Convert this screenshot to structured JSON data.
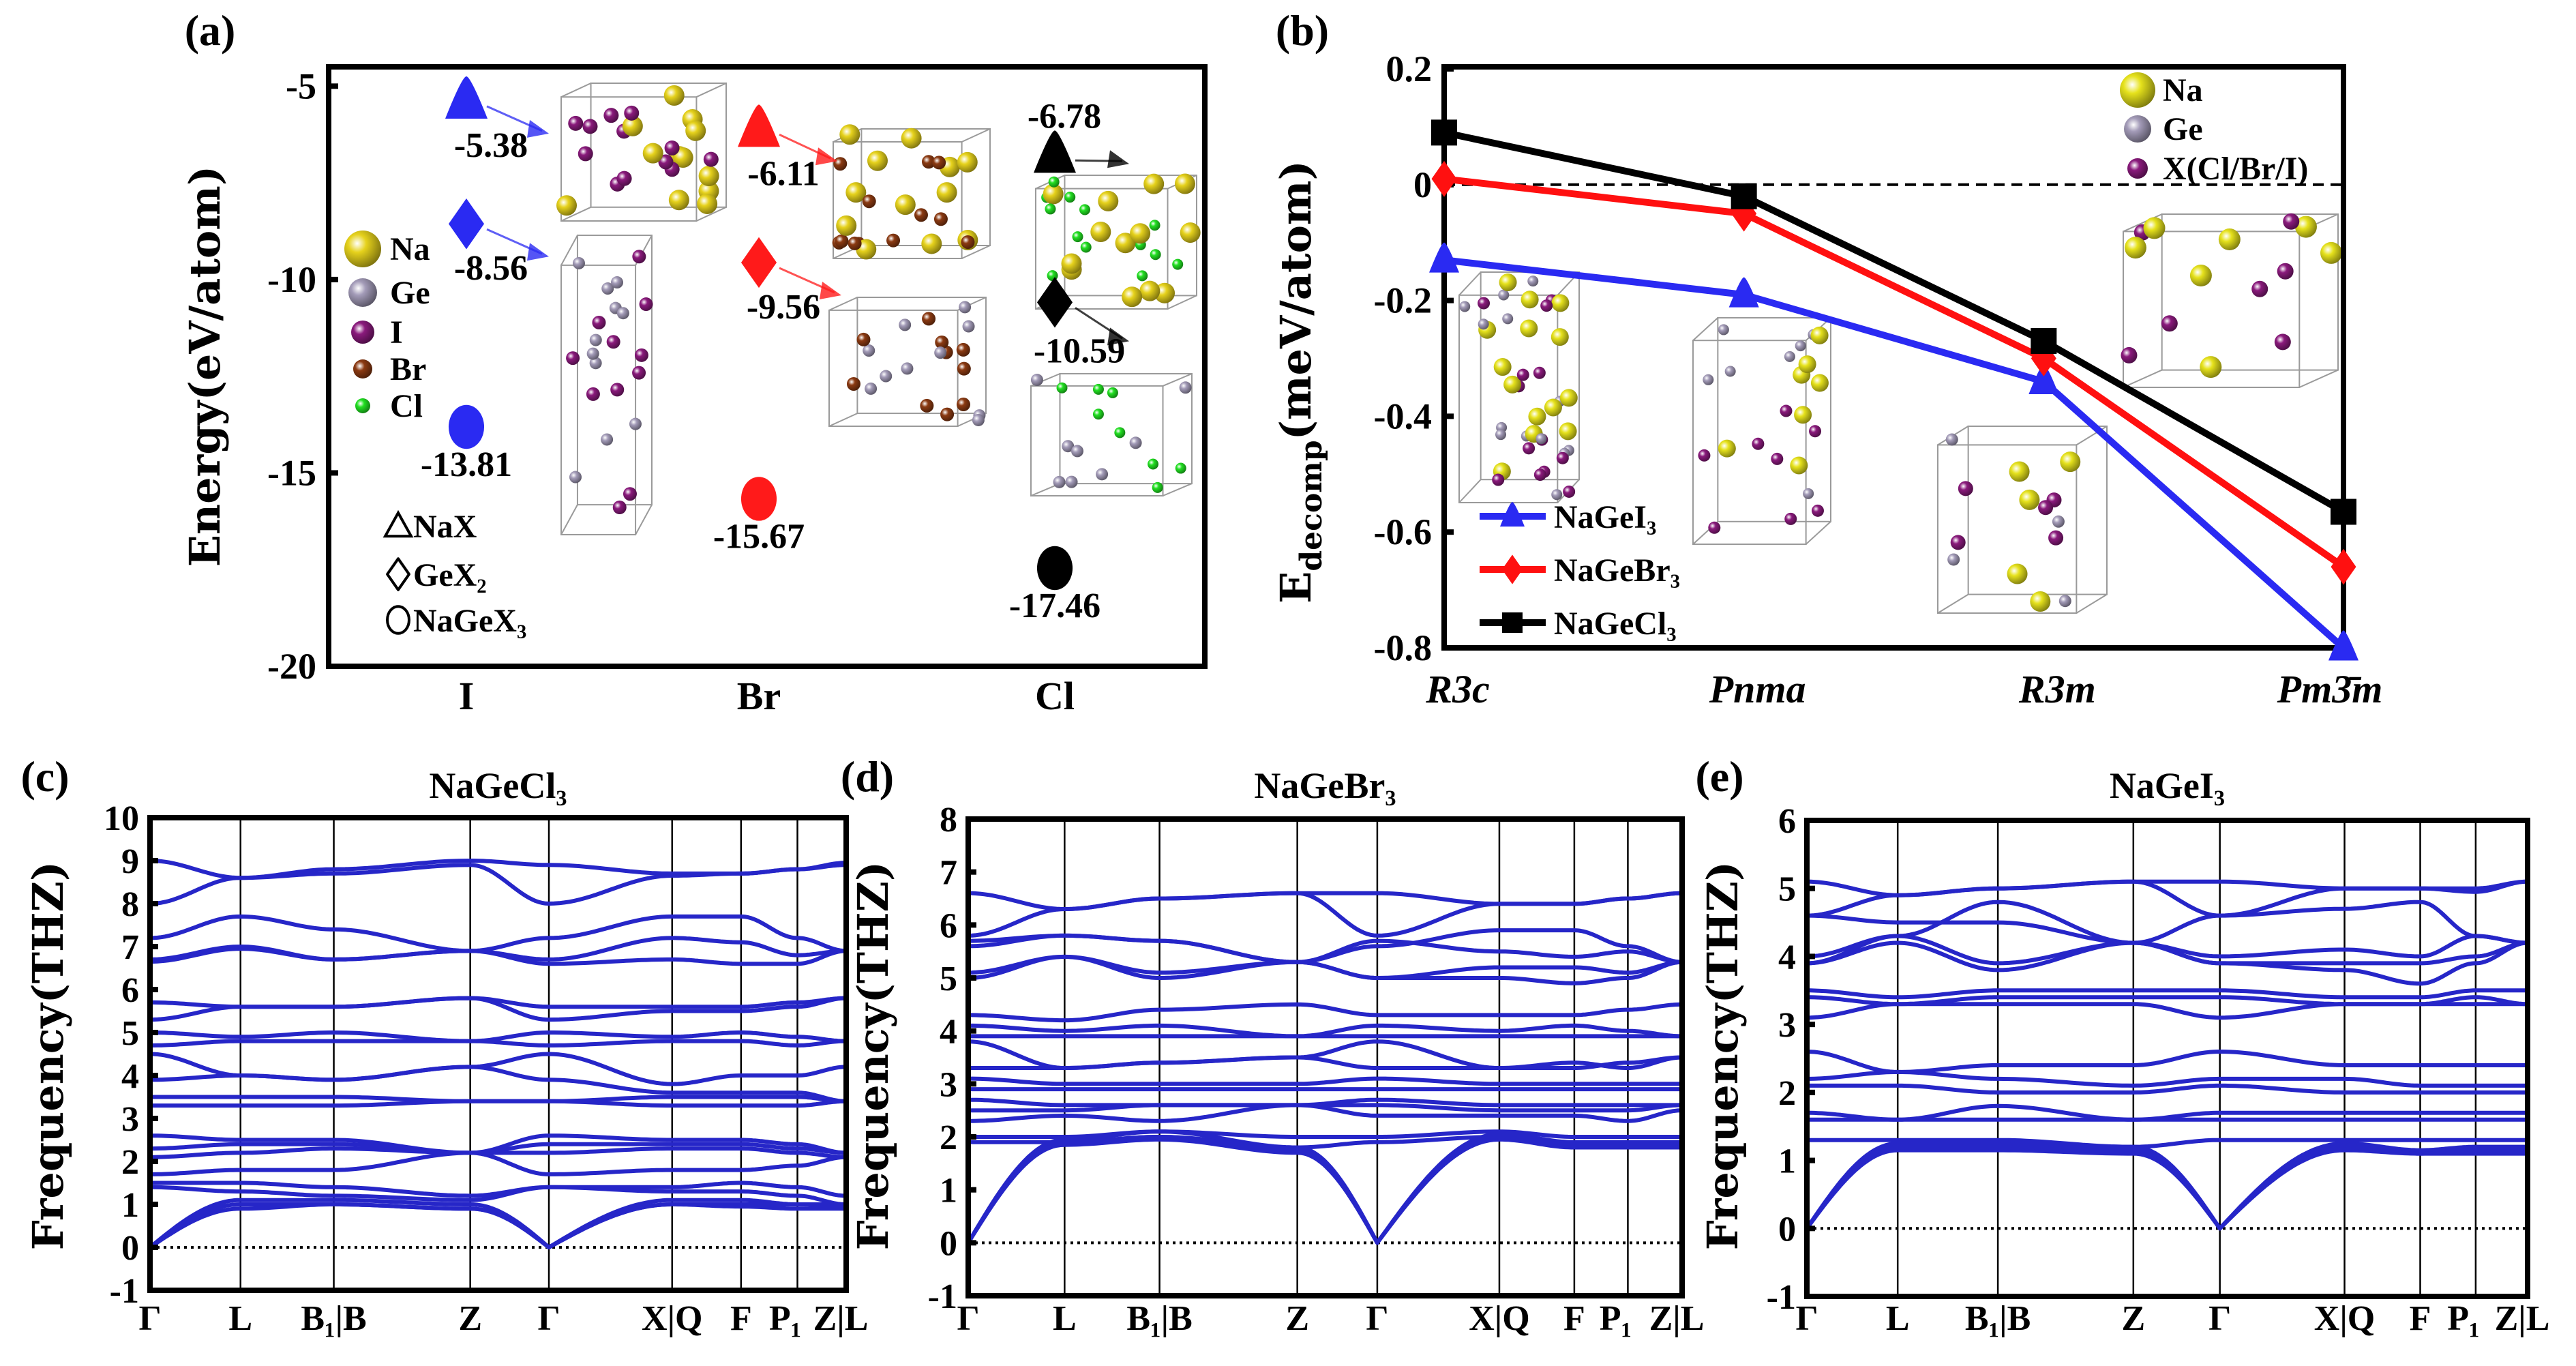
{
  "panel_labels": {
    "a": "(a)",
    "b": "(b)",
    "c": "(c)",
    "d": "(d)",
    "e": "(e)"
  },
  "chart_data": [
    {
      "panel": "(a)",
      "type": "scatter",
      "ylabel": "Energy(eV/atom)",
      "ylim": [
        -20,
        -4.5
      ],
      "yticks": [
        -5,
        -10,
        -15,
        -20
      ],
      "categories": [
        "I",
        "Br",
        "Cl"
      ],
      "category_colors": [
        "#2a2af2",
        "#ff1a1a",
        "#000000"
      ],
      "series": [
        {
          "name": "NaX",
          "marker": "triangle",
          "values": [
            -5.38,
            -6.11,
            -6.78
          ]
        },
        {
          "name": "GeX₂",
          "marker": "diamond",
          "values": [
            -8.56,
            -9.56,
            -10.59
          ]
        },
        {
          "name": "NaGeX₃",
          "marker": "circle",
          "values": [
            -13.81,
            -15.67,
            -17.46
          ]
        }
      ],
      "atom_legend": [
        {
          "label": "Na",
          "color": "#e6d21c"
        },
        {
          "label": "Ge",
          "color": "#a39bb8"
        },
        {
          "label": "I",
          "color": "#8a1a7c"
        },
        {
          "label": "Br",
          "color": "#8b3a12"
        },
        {
          "label": "Cl",
          "color": "#22e022"
        }
      ]
    },
    {
      "panel": "(b)",
      "type": "line",
      "ylabel_main": "E",
      "ylabel_sub": "decomp",
      "ylabel_unit": "(meV/atom)",
      "ylim": [
        -0.8,
        0.2
      ],
      "yticks": [
        0.2,
        0,
        -0.2,
        -0.4,
        -0.6,
        -0.8
      ],
      "categories": [
        "R3c",
        "Pnma",
        "R3m",
        "Pm3̄m"
      ],
      "reference_line": 0,
      "series": [
        {
          "name": "NaGeI₃",
          "color": "#2a2af2",
          "marker": "triangle",
          "values": [
            -0.13,
            -0.19,
            -0.34,
            -0.8
          ]
        },
        {
          "name": "NaGeBr₃",
          "color": "#ff1010",
          "marker": "diamond",
          "values": [
            0.01,
            -0.05,
            -0.3,
            -0.66
          ]
        },
        {
          "name": "NaGeCl₃",
          "color": "#000000",
          "marker": "square",
          "values": [
            0.09,
            -0.02,
            -0.27,
            -0.565
          ]
        }
      ],
      "atom_legend": [
        {
          "label": "Na",
          "color": "#e6e21c"
        },
        {
          "label": "Ge",
          "color": "#a39bb8"
        },
        {
          "label": "X(Cl/Br/I)",
          "color": "#8a1a7c"
        }
      ]
    },
    {
      "panel": "(c)",
      "type": "line",
      "title": "NaGeCl₃",
      "ylabel": "Frequency(THZ)",
      "ylim": [
        -1,
        10
      ],
      "yticks": [
        10,
        9,
        8,
        7,
        6,
        5,
        4,
        3,
        2,
        1,
        0,
        -1
      ],
      "kpoints": [
        "Γ",
        "L",
        "B₁|B",
        "Z",
        "Γ",
        "X|Q",
        "F",
        "P₁",
        "Z|L"
      ],
      "color": "#2626c8",
      "bands": [
        [
          9.0,
          8.6,
          8.8,
          9.0,
          8.9,
          8.7,
          8.7,
          8.8,
          8.95
        ],
        [
          8.0,
          8.6,
          8.7,
          8.9,
          8.0,
          8.65,
          8.7,
          8.8,
          8.9
        ],
        [
          7.2,
          7.7,
          7.4,
          6.9,
          7.2,
          7.7,
          7.7,
          7.2,
          6.9
        ],
        [
          6.7,
          7.0,
          6.7,
          6.9,
          6.7,
          7.2,
          7.1,
          6.8,
          6.9
        ],
        [
          6.65,
          6.95,
          6.7,
          6.9,
          6.6,
          6.7,
          6.6,
          6.6,
          6.9
        ],
        [
          5.7,
          5.6,
          5.6,
          5.8,
          5.6,
          5.6,
          5.6,
          5.7,
          5.8
        ],
        [
          5.3,
          5.6,
          5.6,
          5.8,
          5.3,
          5.5,
          5.5,
          5.6,
          5.8
        ],
        [
          5.0,
          4.9,
          5.0,
          4.8,
          5.0,
          4.9,
          5.0,
          4.9,
          4.8
        ],
        [
          4.7,
          4.8,
          4.8,
          4.8,
          4.7,
          4.8,
          4.8,
          4.7,
          4.8
        ],
        [
          4.5,
          4.0,
          3.9,
          4.2,
          4.5,
          3.8,
          4.0,
          4.0,
          4.2
        ],
        [
          3.9,
          4.0,
          3.9,
          4.2,
          3.9,
          3.6,
          3.6,
          3.6,
          3.4
        ],
        [
          3.5,
          3.5,
          3.5,
          3.4,
          3.4,
          3.5,
          3.5,
          3.5,
          3.4
        ],
        [
          3.3,
          3.3,
          3.3,
          3.4,
          3.4,
          3.3,
          3.3,
          3.3,
          3.4
        ],
        [
          2.6,
          2.5,
          2.5,
          2.2,
          2.6,
          2.5,
          2.5,
          2.4,
          2.2
        ],
        [
          2.3,
          2.4,
          2.4,
          2.2,
          2.4,
          2.4,
          2.4,
          2.3,
          2.2
        ],
        [
          2.1,
          2.2,
          2.3,
          2.2,
          2.2,
          2.3,
          2.3,
          2.2,
          2.1
        ],
        [
          1.7,
          1.8,
          1.8,
          2.2,
          1.7,
          1.8,
          1.8,
          1.9,
          2.1
        ],
        [
          1.5,
          1.5,
          1.4,
          1.2,
          1.4,
          1.4,
          1.5,
          1.4,
          1.2
        ],
        [
          1.4,
          1.3,
          1.2,
          1.1,
          1.4,
          1.3,
          1.3,
          1.2,
          1.0
        ],
        [
          0,
          1.1,
          1.1,
          1.0,
          0,
          1.1,
          1.1,
          1.0,
          1.0
        ],
        [
          0,
          1.0,
          1.0,
          0.9,
          0,
          1.0,
          1.0,
          1.0,
          0.95
        ],
        [
          0,
          0.9,
          1.0,
          0.9,
          0,
          1.0,
          0.95,
          0.9,
          0.9
        ]
      ]
    },
    {
      "panel": "(d)",
      "type": "line",
      "title": "NaGeBr₃",
      "ylabel": "Frequency(THZ)",
      "ylim": [
        -1,
        8
      ],
      "yticks": [
        8,
        7,
        6,
        5,
        4,
        3,
        2,
        1,
        0,
        -1
      ],
      "kpoints": [
        "Γ",
        "L",
        "B₁|B",
        "Z",
        "Γ",
        "X|Q",
        "F",
        "P₁",
        "Z|L"
      ],
      "color": "#2626c8",
      "bands": [
        [
          6.6,
          6.3,
          6.5,
          6.6,
          6.6,
          6.4,
          6.4,
          6.5,
          6.6
        ],
        [
          5.8,
          6.3,
          6.5,
          6.6,
          5.8,
          6.4,
          6.4,
          6.5,
          6.6
        ],
        [
          5.7,
          5.8,
          5.7,
          5.3,
          5.6,
          5.9,
          5.9,
          5.6,
          5.3
        ],
        [
          5.6,
          5.8,
          5.7,
          5.3,
          5.7,
          5.5,
          5.4,
          5.5,
          5.3
        ],
        [
          5.1,
          5.4,
          5.1,
          5.3,
          5.0,
          5.2,
          5.2,
          5.1,
          5.3
        ],
        [
          5.0,
          5.4,
          5.0,
          5.3,
          5.0,
          5.0,
          4.9,
          5.0,
          5.3
        ],
        [
          4.3,
          4.2,
          4.4,
          4.5,
          4.3,
          4.3,
          4.3,
          4.4,
          4.5
        ],
        [
          4.1,
          4.0,
          4.1,
          3.9,
          4.1,
          4.0,
          4.1,
          4.0,
          3.9
        ],
        [
          3.9,
          3.9,
          3.9,
          3.9,
          3.9,
          3.9,
          3.9,
          3.9,
          3.9
        ],
        [
          3.8,
          3.3,
          3.4,
          3.5,
          3.8,
          3.3,
          3.3,
          3.4,
          3.5
        ],
        [
          3.3,
          3.3,
          3.4,
          3.5,
          3.3,
          3.3,
          3.4,
          3.3,
          3.5
        ],
        [
          3.1,
          3.0,
          3.0,
          3.0,
          3.1,
          3.0,
          3.0,
          3.0,
          3.0
        ],
        [
          2.9,
          2.9,
          2.9,
          2.9,
          2.9,
          2.9,
          2.9,
          2.9,
          2.9
        ],
        [
          2.7,
          2.6,
          2.6,
          2.6,
          2.7,
          2.6,
          2.6,
          2.6,
          2.6
        ],
        [
          2.5,
          2.5,
          2.6,
          2.6,
          2.6,
          2.5,
          2.5,
          2.5,
          2.6
        ],
        [
          2.3,
          2.4,
          2.3,
          2.6,
          2.4,
          2.4,
          2.4,
          2.3,
          2.5
        ],
        [
          2.0,
          2.0,
          2.1,
          2.0,
          2.0,
          2.1,
          2.0,
          2.0,
          2.0
        ],
        [
          1.9,
          1.9,
          2.0,
          1.8,
          1.9,
          2.0,
          1.9,
          1.9,
          1.9
        ],
        [
          0,
          1.95,
          2.1,
          1.8,
          0,
          2.05,
          1.9,
          1.9,
          1.9
        ],
        [
          0,
          1.9,
          2.0,
          1.75,
          0,
          2.0,
          1.85,
          1.85,
          1.85
        ],
        [
          0,
          1.85,
          1.95,
          1.7,
          0,
          1.95,
          1.8,
          1.8,
          1.8
        ]
      ]
    },
    {
      "panel": "(e)",
      "type": "line",
      "title": "NaGeI₃",
      "ylabel": "Frequency(THZ)",
      "ylim": [
        -1,
        6
      ],
      "yticks": [
        6,
        5,
        4,
        3,
        2,
        1,
        0,
        -1
      ],
      "kpoints": [
        "Γ",
        "L",
        "B₁|B",
        "Z",
        "Γ",
        "X|Q",
        "F",
        "P₁",
        "Z|L"
      ],
      "color": "#2626c8",
      "bands": [
        [
          5.1,
          4.9,
          5.0,
          5.1,
          5.1,
          5.0,
          5.0,
          5.0,
          5.1
        ],
        [
          4.6,
          4.9,
          5.0,
          5.1,
          4.6,
          5.0,
          5.0,
          4.95,
          5.1
        ],
        [
          4.6,
          4.5,
          4.5,
          4.2,
          4.6,
          4.7,
          4.8,
          4.3,
          4.2
        ],
        [
          4.0,
          4.3,
          4.8,
          4.2,
          4.0,
          4.1,
          4.0,
          4.3,
          4.2
        ],
        [
          3.9,
          4.3,
          3.9,
          4.2,
          3.9,
          3.9,
          3.9,
          4.0,
          4.2
        ],
        [
          3.9,
          4.2,
          3.8,
          4.2,
          3.9,
          3.8,
          3.6,
          3.9,
          4.2
        ],
        [
          3.5,
          3.4,
          3.5,
          3.5,
          3.5,
          3.4,
          3.4,
          3.5,
          3.5
        ],
        [
          3.4,
          3.3,
          3.4,
          3.4,
          3.4,
          3.3,
          3.3,
          3.4,
          3.3
        ],
        [
          3.1,
          3.3,
          3.3,
          3.3,
          3.1,
          3.3,
          3.3,
          3.3,
          3.3
        ],
        [
          2.6,
          2.3,
          2.4,
          2.4,
          2.6,
          2.4,
          2.4,
          2.4,
          2.4
        ],
        [
          2.2,
          2.3,
          2.2,
          2.1,
          2.2,
          2.2,
          2.1,
          2.1,
          2.1
        ],
        [
          2.1,
          2.1,
          2.0,
          2.0,
          2.1,
          2.0,
          2.0,
          2.0,
          2.0
        ],
        [
          1.7,
          1.6,
          1.8,
          1.6,
          1.7,
          1.7,
          1.7,
          1.7,
          1.7
        ],
        [
          1.6,
          1.6,
          1.6,
          1.6,
          1.6,
          1.6,
          1.6,
          1.6,
          1.6
        ],
        [
          1.3,
          1.3,
          1.3,
          1.2,
          1.3,
          1.3,
          1.3,
          1.3,
          1.3
        ],
        [
          0,
          1.25,
          1.25,
          1.2,
          0,
          1.25,
          1.15,
          1.2,
          1.2
        ],
        [
          0,
          1.2,
          1.2,
          1.15,
          0,
          1.2,
          1.1,
          1.15,
          1.15
        ],
        [
          0,
          1.15,
          1.15,
          1.1,
          0,
          1.15,
          1.1,
          1.1,
          1.1
        ]
      ]
    }
  ]
}
